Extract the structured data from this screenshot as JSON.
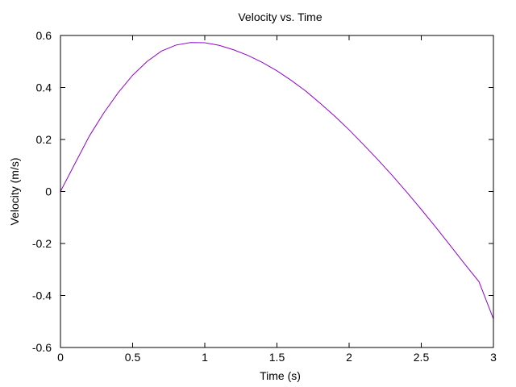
{
  "chart_data": {
    "type": "line",
    "title": "Velocity vs. Time",
    "xlabel": "Time (s)",
    "ylabel": "Velocity (m/s)",
    "xlim": [
      0,
      3
    ],
    "ylim": [
      -0.6,
      0.6
    ],
    "xticks": [
      0,
      0.5,
      1,
      1.5,
      2,
      2.5,
      3
    ],
    "xtick_labels": [
      "0",
      "0.5",
      "1",
      "1.5",
      "2",
      "2.5",
      "3"
    ],
    "yticks": [
      -0.6,
      -0.4,
      -0.2,
      0,
      0.2,
      0.4,
      0.6
    ],
    "ytick_labels": [
      "-0.6",
      "-0.4",
      "-0.2",
      "0",
      "0.2",
      "0.4",
      "0.6"
    ],
    "grid": false,
    "legend": "none",
    "series": [
      {
        "color": "#9400d3",
        "x": [
          0,
          0.1,
          0.2,
          0.3,
          0.4,
          0.5,
          0.6,
          0.7,
          0.8,
          0.9,
          1.0,
          1.1,
          1.2,
          1.3,
          1.4,
          1.5,
          1.6,
          1.7,
          1.8,
          1.9,
          2.0,
          2.1,
          2.2,
          2.3,
          2.4,
          2.5,
          2.6,
          2.7,
          2.8,
          2.9,
          3.0
        ],
        "y": [
          0,
          0.107,
          0.213,
          0.302,
          0.38,
          0.447,
          0.5,
          0.54,
          0.563,
          0.573,
          0.572,
          0.562,
          0.545,
          0.523,
          0.496,
          0.464,
          0.427,
          0.386,
          0.339,
          0.29,
          0.237,
          0.18,
          0.122,
          0.061,
          -0.003,
          -0.069,
          -0.137,
          -0.207,
          -0.278,
          -0.347,
          -0.49
        ]
      }
    ]
  }
}
